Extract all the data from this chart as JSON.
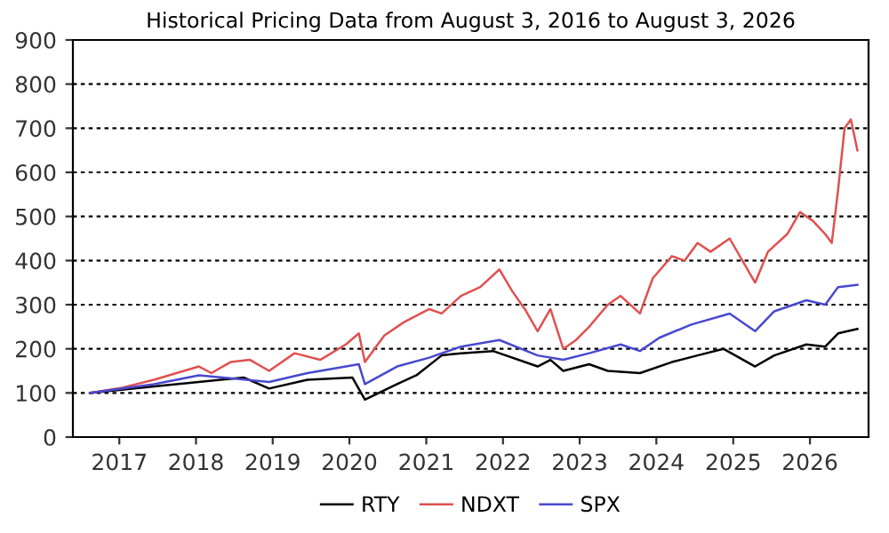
{
  "chart_data": {
    "type": "line",
    "title": "Historical Pricing Data from August 3, 2016 to August 3, 2026",
    "xlim": [
      "2016-05-25",
      "2026-10-07"
    ],
    "xticks": [
      {
        "value": "2017-01-01",
        "label": "2017"
      },
      {
        "value": "2018-01-01",
        "label": "2018"
      },
      {
        "value": "2019-01-01",
        "label": "2019"
      },
      {
        "value": "2020-01-01",
        "label": "2020"
      },
      {
        "value": "2021-01-01",
        "label": "2021"
      },
      {
        "value": "2022-01-01",
        "label": "2022"
      },
      {
        "value": "2023-01-01",
        "label": "2023"
      },
      {
        "value": "2024-01-01",
        "label": "2024"
      },
      {
        "value": "2025-01-01",
        "label": "2025"
      },
      {
        "value": "2026-01-01",
        "label": "2026"
      }
    ],
    "ylim": [
      0,
      900
    ],
    "yticks": [
      0,
      100,
      200,
      300,
      400,
      500,
      600,
      700,
      800,
      900
    ],
    "grid": "y",
    "legend": "bottom",
    "line_style": "solid",
    "marker": "none",
    "series": [
      {
        "name": "RTY",
        "color": "#000000",
        "x": [
          "2016-08",
          "2017-06",
          "2018-08",
          "2018-12",
          "2019-06",
          "2020-01",
          "2020-03",
          "2020-08",
          "2020-11",
          "2021-03",
          "2021-06",
          "2021-11",
          "2022-06",
          "2022-08",
          "2022-10",
          "2023-02",
          "2023-05",
          "2023-10",
          "2024-03",
          "2024-07",
          "2024-11",
          "2025-04",
          "2025-07",
          "2025-12",
          "2026-03",
          "2026-05",
          "2026-08"
        ],
        "values": [
          100,
          115,
          135,
          110,
          130,
          135,
          85,
          120,
          140,
          185,
          190,
          195,
          160,
          175,
          150,
          165,
          150,
          145,
          170,
          185,
          200,
          160,
          185,
          210,
          205,
          235,
          245
        ]
      },
      {
        "name": "NDXT",
        "color": "#e05050",
        "x": [
          "2016-08",
          "2017-01",
          "2017-06",
          "2018-01",
          "2018-03",
          "2018-06",
          "2018-09",
          "2018-12",
          "2019-04",
          "2019-08",
          "2019-12",
          "2020-02",
          "2020-03",
          "2020-06",
          "2020-09",
          "2021-01",
          "2021-03",
          "2021-06",
          "2021-09",
          "2021-12",
          "2022-02",
          "2022-04",
          "2022-06",
          "2022-08",
          "2022-10",
          "2022-12",
          "2023-02",
          "2023-05",
          "2023-07",
          "2023-10",
          "2023-12",
          "2024-03",
          "2024-05",
          "2024-07",
          "2024-09",
          "2024-12",
          "2025-04",
          "2025-06",
          "2025-09",
          "2025-11",
          "2026-01",
          "2026-03",
          "2026-04",
          "2026-05",
          "2026-06",
          "2026-07",
          "2026-08"
        ],
        "values": [
          100,
          112,
          130,
          160,
          145,
          170,
          175,
          150,
          190,
          175,
          210,
          235,
          170,
          230,
          260,
          290,
          280,
          320,
          340,
          380,
          330,
          290,
          240,
          290,
          200,
          220,
          250,
          300,
          320,
          280,
          360,
          410,
          400,
          440,
          420,
          450,
          350,
          420,
          460,
          510,
          490,
          460,
          440,
          560,
          700,
          720,
          650
        ]
      },
      {
        "name": "SPX",
        "color": "#4848d0",
        "x": [
          "2016-08",
          "2017-06",
          "2018-01",
          "2018-12",
          "2019-06",
          "2020-02",
          "2020-03",
          "2020-08",
          "2021-01",
          "2021-06",
          "2021-12",
          "2022-06",
          "2022-10",
          "2023-02",
          "2023-07",
          "2023-10",
          "2024-01",
          "2024-06",
          "2024-12",
          "2025-04",
          "2025-07",
          "2025-12",
          "2026-03",
          "2026-05",
          "2026-08"
        ],
        "values": [
          100,
          120,
          140,
          125,
          145,
          165,
          120,
          160,
          180,
          205,
          220,
          185,
          175,
          190,
          210,
          195,
          225,
          255,
          280,
          240,
          285,
          310,
          300,
          340,
          345
        ]
      }
    ]
  }
}
